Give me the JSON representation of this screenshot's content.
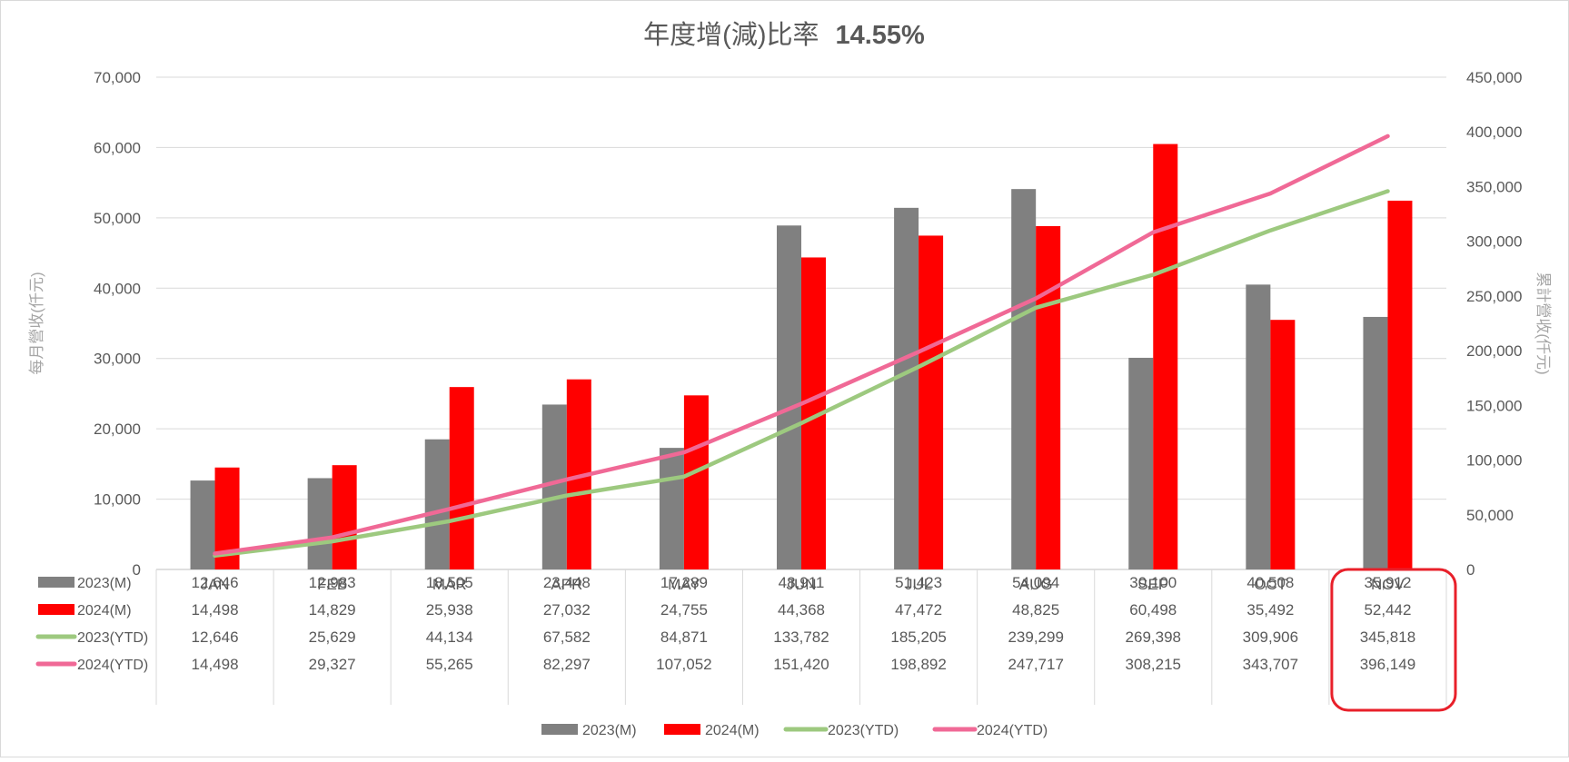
{
  "title": "年度增(減)比率",
  "title_ratio": "14.55%",
  "chart_data": {
    "type": "bar",
    "title": "年度增(減)比率 14.55%",
    "categories": [
      "JAN",
      "FEB",
      "MAR",
      "APR",
      "MAY",
      "JUN",
      "JUL",
      "AUG",
      "SEP",
      "OCT",
      "NOV"
    ],
    "ylabel": "每月營收(仟元)",
    "y2label": "累計營收(仟元)",
    "ylim": [
      0,
      70000
    ],
    "y2lim": [
      0,
      450000
    ],
    "yticks": [
      "0",
      "10,000",
      "20,000",
      "30,000",
      "40,000",
      "50,000",
      "60,000",
      "70,000"
    ],
    "y2ticks": [
      "0",
      "50,000",
      "100,000",
      "150,000",
      "200,000",
      "250,000",
      "300,000",
      "350,000",
      "400,000",
      "450,000"
    ],
    "grid": true,
    "legend": "bottom",
    "highlight_category": "NOV",
    "series": [
      {
        "name": "2023(M)",
        "type": "bar",
        "axis": "left",
        "color": "#808080",
        "values": [
          12646,
          12983,
          18505,
          23448,
          17289,
          48911,
          51423,
          54094,
          30100,
          40508,
          35912
        ],
        "labels": [
          "12,646",
          "12,983",
          "18,505",
          "23,448",
          "17,289",
          "48,911",
          "51,423",
          "54,094",
          "30,100",
          "40,508",
          "35,912"
        ]
      },
      {
        "name": "2024(M)",
        "type": "bar",
        "axis": "left",
        "color": "#ff0000",
        "values": [
          14498,
          14829,
          25938,
          27032,
          24755,
          44368,
          47472,
          48825,
          60498,
          35492,
          52442
        ],
        "labels": [
          "14,498",
          "14,829",
          "25,938",
          "27,032",
          "24,755",
          "44,368",
          "47,472",
          "48,825",
          "60,498",
          "35,492",
          "52,442"
        ]
      },
      {
        "name": "2023(YTD)",
        "type": "line",
        "axis": "right",
        "color": "#9dc97f",
        "values": [
          12646,
          25629,
          44134,
          67582,
          84871,
          133782,
          185205,
          239299,
          269398,
          309906,
          345818
        ],
        "labels": [
          "12,646",
          "25,629",
          "44,134",
          "67,582",
          "84,871",
          "133,782",
          "185,205",
          "239,299",
          "269,398",
          "309,906",
          "345,818"
        ]
      },
      {
        "name": "2024(YTD)",
        "type": "line",
        "axis": "right",
        "color": "#f06996",
        "values": [
          14498,
          29327,
          55265,
          82297,
          107052,
          151420,
          198892,
          247717,
          308215,
          343707,
          396149
        ],
        "labels": [
          "14,498",
          "29,327",
          "55,265",
          "82,297",
          "107,052",
          "151,420",
          "198,892",
          "247,717",
          "308,215",
          "343,707",
          "396,149"
        ]
      }
    ]
  }
}
